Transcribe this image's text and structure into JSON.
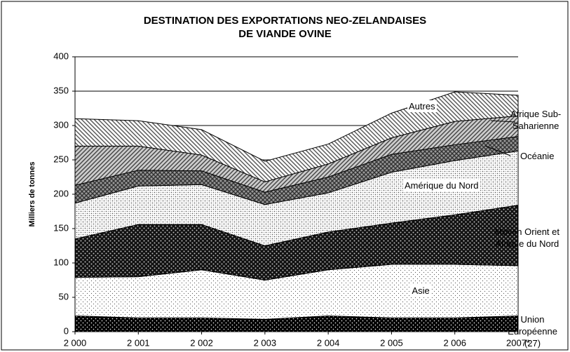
{
  "chart_data": {
    "type": "area",
    "stacked": true,
    "title": "DESTINATION DES EXPORTATIONS NEO-ZELANDAISES\nDE VIANDE OVINE",
    "ylabel": "Milliers de tonnes",
    "categories": [
      "2 000",
      "2 001",
      "2 002",
      "2 003",
      "2 004",
      "2 005",
      "2 006",
      "2007*"
    ],
    "series": [
      {
        "name": "Union Européenne\n(27)",
        "color": "#000000",
        "values": [
          23,
          20,
          20,
          18,
          23,
          20,
          20,
          23
        ]
      },
      {
        "name": "Asie",
        "color": "#555555",
        "values": [
          56,
          60,
          70,
          57,
          67,
          78,
          78,
          73
        ]
      },
      {
        "name": "Moyen Orient et\nAfrique du Nord",
        "color": "#111111",
        "values": [
          56,
          76,
          66,
          50,
          55,
          60,
          72,
          88
        ]
      },
      {
        "name": "Amérique du Nord",
        "color": "#666666",
        "values": [
          52,
          56,
          58,
          60,
          57,
          74,
          79,
          79
        ]
      },
      {
        "name": "Océanie",
        "color": "#333333",
        "values": [
          26,
          23,
          20,
          18,
          23,
          26,
          23,
          21
        ]
      },
      {
        "name": "Afrique Sub-\nSaharienne",
        "color": "#444444",
        "values": [
          57,
          35,
          23,
          15,
          19,
          24,
          34,
          30
        ]
      },
      {
        "name": "Autres",
        "color": "#555555",
        "values": [
          40,
          37,
          37,
          30,
          29,
          36,
          43,
          30
        ]
      }
    ],
    "ylim": [
      0,
      400
    ],
    "yticks": [
      0,
      50,
      100,
      150,
      200,
      250,
      300,
      350,
      400
    ],
    "grid": true
  }
}
